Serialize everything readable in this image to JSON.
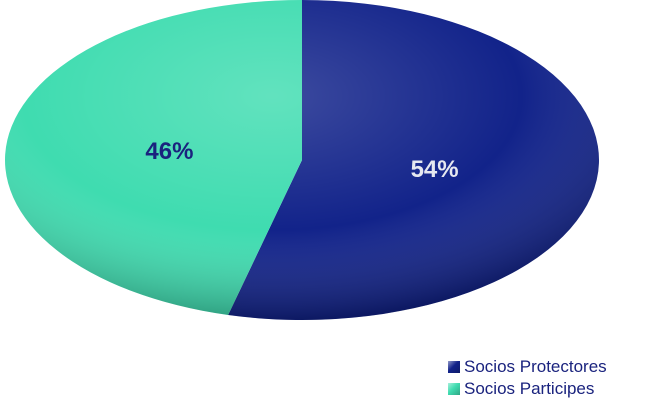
{
  "chart_data": {
    "type": "pie",
    "title": "",
    "labels": [
      "Socios Protectores",
      "Socios Participes"
    ],
    "values": [
      54,
      46
    ],
    "data_labels": [
      "54%",
      "46%"
    ],
    "colors": [
      "#12238a",
      "#3fdcb0"
    ],
    "label_colors": [
      "#e6e8f0",
      "#1a237e"
    ],
    "legend_position": "bottom-right",
    "style": "3d-tilted"
  }
}
